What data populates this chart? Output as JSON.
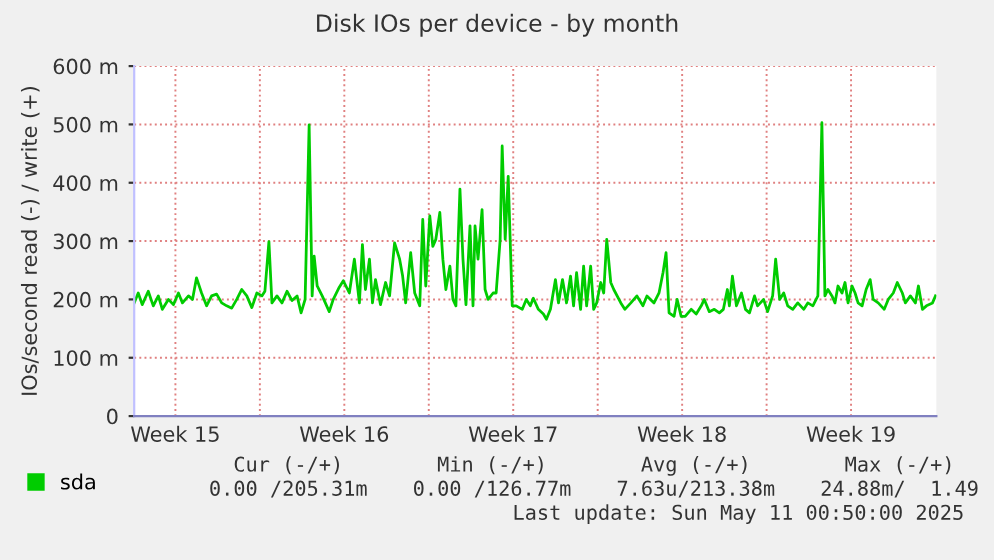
{
  "chart_data": {
    "type": "line",
    "title": "Disk IOs per device - by month",
    "ylabel": "IOs/second read (-) / write (+)",
    "xlim": [
      "2025-04-07T19:00",
      "2025-05-11T00:50"
    ],
    "ylim": [
      0,
      600
    ],
    "xticks": [
      {
        "value": "2025-04-09T12:00",
        "label": "Week 15"
      },
      {
        "value": "2025-04-13",
        "label": null
      },
      {
        "value": "2025-04-16T12:00",
        "label": "Week 16"
      },
      {
        "value": "2025-04-20",
        "label": null
      },
      {
        "value": "2025-04-23T12:00",
        "label": "Week 17"
      },
      {
        "value": "2025-04-27",
        "label": null
      },
      {
        "value": "2025-04-30T12:00",
        "label": "Week 18"
      },
      {
        "value": "2025-05-04",
        "label": null
      },
      {
        "value": "2025-05-07T12:00",
        "label": "Week 19"
      }
    ],
    "yticks": [
      0,
      {
        "value": 100,
        "label": "100 m"
      },
      {
        "value": 200,
        "label": "200 m"
      },
      {
        "value": 300,
        "label": "300 m"
      },
      {
        "value": 400,
        "label": "400 m"
      },
      {
        "value": 500,
        "label": "500 m"
      },
      {
        "value": 600,
        "label": "600 m"
      }
    ],
    "grid": true,
    "legend": "bottom left",
    "marker": "none",
    "line_style": "solid",
    "annotations": [
      "Cur (-/+)",
      "Min (-/+)",
      "Avg (-/+)",
      "Max (-/+)",
      "0.00 /205.31m",
      "0.00 /126.77m",
      "7.63u/213.38m",
      "24.88m/  1.49",
      "Last update: Sun May 11 00:50:00 2025"
    ],
    "series": [
      {
        "name": "sda",
        "color": "#00cc00",
        "x": [
          "2025-04-07T19:00",
          "2025-04-07T23:00",
          "2025-04-08T03:00",
          "2025-04-08T09:00",
          "2025-04-08T14:00",
          "2025-04-08T19:00",
          "2025-04-08T23:00",
          "2025-04-09T05:00",
          "2025-04-09T10:00",
          "2025-04-09T15:00",
          "2025-04-09T19:00",
          "2025-04-10T01:00",
          "2025-04-10T05:00",
          "2025-04-10T09:00",
          "2025-04-10T14:00",
          "2025-04-10T19:00",
          "2025-04-11T00:00",
          "2025-04-11T05:00",
          "2025-04-11T10:00",
          "2025-04-11T15:00",
          "2025-04-11T20:00",
          "2025-04-12T01:00",
          "2025-04-12T06:00",
          "2025-04-12T11:00",
          "2025-04-12T16:00",
          "2025-04-12T21:00",
          "2025-04-13T02:00",
          "2025-04-13T05:00",
          "2025-04-13T09:00",
          "2025-04-13T12:00",
          "2025-04-13T17:00",
          "2025-04-13T22:00",
          "2025-04-14T03:00",
          "2025-04-14T08:00",
          "2025-04-14T13:00",
          "2025-04-14T17:00",
          "2025-04-14T21:00",
          "2025-04-15T01:00",
          "2025-04-15T04:00",
          "2025-04-15T06:00",
          "2025-04-15T09:00",
          "2025-04-15T14:00",
          "2025-04-15T21:00",
          "2025-04-16T01:00",
          "2025-04-16T07:00",
          "2025-04-16T11:00",
          "2025-04-16T17:00",
          "2025-04-16T22:00",
          "2025-04-17T03:00",
          "2025-04-17T06:00",
          "2025-04-17T09:00",
          "2025-04-17T13:00",
          "2025-04-17T16:00",
          "2025-04-17T19:00",
          "2025-04-18T00:00",
          "2025-04-18T05:00",
          "2025-04-18T09:00",
          "2025-04-18T14:00",
          "2025-04-18T19:00",
          "2025-04-18T22:00",
          "2025-04-19T01:00",
          "2025-04-19T06:00",
          "2025-04-19T10:00",
          "2025-04-19T15:00",
          "2025-04-19T18:00",
          "2025-04-19T21:00",
          "2025-04-20T01:00",
          "2025-04-20T04:00",
          "2025-04-20T07:00",
          "2025-04-20T11:00",
          "2025-04-20T14:00",
          "2025-04-20T17:00",
          "2025-04-20T21:00",
          "2025-04-21T00:00",
          "2025-04-21T03:00",
          "2025-04-21T07:00",
          "2025-04-21T10:00",
          "2025-04-21T13:00",
          "2025-04-21T17:00",
          "2025-04-21T20:00",
          "2025-04-21T22:00",
          "2025-04-22T01:00",
          "2025-04-22T05:00",
          "2025-04-22T08:00",
          "2025-04-22T11:00",
          "2025-04-22T16:00",
          "2025-04-22T19:00",
          "2025-04-22T23:00",
          "2025-04-23T01:00",
          "2025-04-23T04:00",
          "2025-04-23T07:00",
          "2025-04-23T11:00",
          "2025-04-23T15:00",
          "2025-04-23T21:00",
          "2025-04-24T01:00",
          "2025-04-24T05:00",
          "2025-04-24T08:00",
          "2025-04-24T13:00",
          "2025-04-24T18:00",
          "2025-04-24T21:00",
          "2025-04-25T01:00",
          "2025-04-25T06:00",
          "2025-04-25T09:00",
          "2025-04-25T13:00",
          "2025-04-25T17:00",
          "2025-04-25T21:00",
          "2025-04-26T00:00",
          "2025-04-26T03:00",
          "2025-04-26T07:00",
          "2025-04-26T10:00",
          "2025-04-26T13:00",
          "2025-04-26T17:00",
          "2025-04-26T20:00",
          "2025-04-26T23:00",
          "2025-04-27T03:00",
          "2025-04-27T06:00",
          "2025-04-27T09:00",
          "2025-04-27T13:00",
          "2025-04-27T16:00",
          "2025-04-27T23:00",
          "2025-04-28T03:00",
          "2025-04-28T09:00",
          "2025-04-28T15:00",
          "2025-04-28T21:00",
          "2025-04-29T01:00",
          "2025-04-29T08:00",
          "2025-04-29T13:00",
          "2025-04-29T17:00",
          "2025-04-29T20:00",
          "2025-04-29T23:00",
          "2025-04-30T04:00",
          "2025-04-30T07:00",
          "2025-04-30T11:00",
          "2025-04-30T15:00",
          "2025-04-30T21:00",
          "2025-05-01T02:00",
          "2025-05-01T07:00",
          "2025-05-01T10:00",
          "2025-05-01T15:00",
          "2025-05-01T20:00",
          "2025-05-02T01:00",
          "2025-05-02T05:00",
          "2025-05-02T09:00",
          "2025-05-02T11:00",
          "2025-05-02T14:00",
          "2025-05-02T18:00",
          "2025-05-02T23:00",
          "2025-05-03T03:00",
          "2025-05-03T07:00",
          "2025-05-03T12:00",
          "2025-05-03T15:00",
          "2025-05-03T21:00",
          "2025-05-04T01:00",
          "2025-05-04T06:00",
          "2025-05-04T09:00",
          "2025-05-04T13:00",
          "2025-05-04T17:00",
          "2025-05-04T21:00",
          "2025-05-05T02:00",
          "2025-05-05T07:00",
          "2025-05-05T13:00",
          "2025-05-05T17:00",
          "2025-05-05T22:00",
          "2025-05-06T03:00",
          "2025-05-06T07:00",
          "2025-05-06T10:00",
          "2025-05-06T13:00",
          "2025-05-06T17:00",
          "2025-05-06T20:00",
          "2025-05-06T23:00",
          "2025-05-07T03:00",
          "2025-05-07T06:00",
          "2025-05-07T09:00",
          "2025-05-07T13:00",
          "2025-05-07T16:00",
          "2025-05-07T19:00",
          "2025-05-07T23:00",
          "2025-05-08T03:00",
          "2025-05-08T07:00",
          "2025-05-08T10:00",
          "2025-05-08T15:00",
          "2025-05-08T21:00",
          "2025-05-09T01:00",
          "2025-05-09T06:00",
          "2025-05-09T10:00",
          "2025-05-09T15:00",
          "2025-05-09T18:00",
          "2025-05-09T23:00",
          "2025-05-10T04:00",
          "2025-05-10T07:00",
          "2025-05-10T11:00",
          "2025-05-10T15:00",
          "2025-05-10T21:00",
          "2025-05-11T00:00"
        ],
        "values": [
          194,
          211,
          191,
          214,
          189,
          206,
          183,
          200,
          191,
          211,
          194,
          206,
          200,
          237,
          211,
          189,
          206,
          209,
          194,
          189,
          185,
          200,
          217,
          206,
          186,
          211,
          206,
          214,
          299,
          194,
          206,
          194,
          214,
          198,
          206,
          177,
          200,
          499,
          206,
          274,
          223,
          206,
          179,
          200,
          221,
          232,
          211,
          269,
          194,
          294,
          217,
          269,
          194,
          234,
          191,
          229,
          206,
          297,
          269,
          240,
          194,
          280,
          211,
          189,
          337,
          223,
          343,
          291,
          303,
          349,
          269,
          217,
          257,
          200,
          189,
          389,
          269,
          191,
          326,
          189,
          326,
          269,
          354,
          217,
          200,
          211,
          211,
          303,
          463,
          303,
          411,
          189,
          189,
          183,
          200,
          189,
          202,
          183,
          175,
          166,
          183,
          234,
          194,
          234,
          194,
          240,
          189,
          246,
          183,
          257,
          189,
          257,
          183,
          194,
          229,
          211,
          303,
          229,
          217,
          194,
          183,
          194,
          206,
          189,
          206,
          194,
          211,
          246,
          280,
          177,
          171,
          200,
          171,
          171,
          183,
          175,
          189,
          200,
          179,
          183,
          177,
          183,
          217,
          189,
          240,
          189,
          211,
          183,
          177,
          206,
          189,
          200,
          179,
          206,
          269,
          200,
          211,
          189,
          183,
          194,
          183,
          194,
          189,
          206,
          503,
          206,
          217,
          206,
          194,
          223,
          211,
          229,
          194,
          223,
          211,
          194,
          189,
          217,
          234,
          200,
          194,
          183,
          200,
          211,
          229,
          211,
          194,
          206,
          194,
          223,
          183,
          189,
          194,
          206
        ]
      }
    ]
  }
}
